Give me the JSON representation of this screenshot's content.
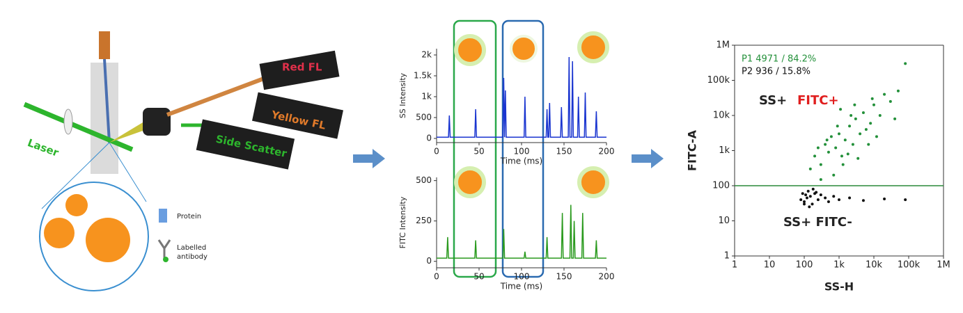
{
  "diagram": {
    "labels": {
      "laser": "Laser",
      "red": "Red FL",
      "yellow": "Yellow FL",
      "side": "Side Scatter",
      "protein": "Protein",
      "antibody": [
        "Labelled",
        "antibody"
      ]
    }
  },
  "chart_data": [
    {
      "type": "line",
      "ylabel": "SS Intensity",
      "xlabel": "Time (ms)",
      "xlim": [
        0,
        200
      ],
      "xticks": [
        0,
        50,
        100,
        150,
        200
      ],
      "ylim": [
        -100,
        2150
      ],
      "yticks": [
        0,
        500,
        {
          "value": 1000,
          "label": "1k"
        },
        {
          "value": 1500,
          "label": "1.5k"
        },
        {
          "value": 2000,
          "label": "2k"
        }
      ],
      "series": [
        {
          "color": "#1a35d0",
          "x": [
            0,
            14,
            15,
            16,
            45,
            46,
            47,
            78,
            79,
            80,
            81,
            82,
            103,
            104,
            105,
            129,
            130,
            131,
            132,
            133,
            134,
            146,
            147,
            148,
            155,
            156,
            157,
            159,
            160,
            161,
            166,
            167,
            168,
            174,
            175,
            176,
            187,
            188,
            189,
            200
          ],
          "values": [
            30,
            30,
            550,
            30,
            30,
            700,
            30,
            30,
            1450,
            30,
            1150,
            30,
            30,
            1000,
            30,
            30,
            700,
            30,
            30,
            850,
            30,
            30,
            750,
            30,
            30,
            1950,
            30,
            30,
            1850,
            30,
            30,
            1000,
            30,
            30,
            1100,
            30,
            30,
            650,
            30,
            30
          ]
        }
      ]
    },
    {
      "type": "line",
      "ylabel": "FITC Intensity",
      "xlabel": "Time (ms)",
      "xlim": [
        0,
        200
      ],
      "xticks": [
        0,
        50,
        100,
        150,
        200
      ],
      "ylim": [
        -40,
        520
      ],
      "yticks": [
        0,
        250,
        500
      ],
      "series": [
        {
          "color": "#2a9a1e",
          "x": [
            0,
            12,
            13,
            14,
            45,
            46,
            47,
            78,
            79,
            80,
            103,
            104,
            105,
            129,
            130,
            131,
            147,
            148,
            149,
            157,
            158,
            159,
            161,
            162,
            163,
            171,
            172,
            173,
            187,
            188,
            189,
            200
          ],
          "values": [
            20,
            20,
            150,
            20,
            20,
            130,
            20,
            20,
            200,
            20,
            20,
            60,
            20,
            20,
            150,
            20,
            20,
            300,
            20,
            20,
            350,
            20,
            20,
            250,
            20,
            20,
            300,
            20,
            20,
            130,
            20,
            20
          ]
        }
      ]
    },
    {
      "type": "scatter",
      "log": true,
      "xlabel": "SS-H",
      "ylabel": "FITC-A",
      "xlim": [
        1,
        1000000
      ],
      "ylim": [
        1,
        1000000
      ],
      "xticks": [
        1,
        10,
        100,
        {
          "value": 1000,
          "label": "1k"
        },
        {
          "value": 10000,
          "label": "10k"
        },
        {
          "value": 100000,
          "label": "100k"
        },
        {
          "value": 1000000,
          "label": "1M"
        }
      ],
      "yticks": [
        1,
        10,
        100,
        {
          "value": 1000,
          "label": "1k"
        },
        {
          "value": 10000,
          "label": "10k"
        },
        {
          "value": 100000,
          "label": "100k"
        },
        {
          "value": 1000000,
          "label": "1M"
        }
      ],
      "gate_y": 100,
      "gate_color": "#2a8a3a",
      "stats": [
        "P1  4971 / 84.2%",
        "P2  936 / 15.8%"
      ],
      "annotations": {
        "pos_ss": "SS+",
        "pos_fitc": "FITC+",
        "neg": "SS+ FITC-"
      },
      "series": [
        {
          "name": "P1",
          "color": "#23903a",
          "x": [
            150,
            200,
            300,
            400,
            500,
            600,
            800,
            1000,
            1200,
            1500,
            2000,
            2500,
            3000,
            4000,
            5000,
            6000,
            8000,
            10000,
            15000,
            20000,
            30000,
            50000,
            80000,
            300,
            700,
            900,
            1300,
            1800,
            2200,
            3500,
            7000,
            12000,
            250,
            450,
            1100,
            2800,
            9000,
            40000
          ],
          "values": [
            300,
            700,
            400,
            1500,
            900,
            2500,
            1200,
            3000,
            700,
            2000,
            5000,
            1500,
            8000,
            3000,
            12000,
            4000,
            6000,
            20000,
            10000,
            40000,
            25000,
            50000,
            300000,
            150,
            200,
            5000,
            400,
            800,
            10000,
            600,
            1500,
            2500,
            1200,
            2000,
            15000,
            20000,
            30000,
            8000
          ]
        },
        {
          "name": "P2",
          "color": "#111111",
          "x": [
            80,
            90,
            100,
            110,
            120,
            130,
            150,
            170,
            200,
            250,
            300,
            400,
            500,
            700,
            1000,
            2000,
            5000,
            20000,
            80000,
            100,
            140,
            180,
            220
          ],
          "values": [
            40,
            60,
            35,
            55,
            45,
            70,
            50,
            30,
            60,
            40,
            55,
            45,
            35,
            50,
            40,
            45,
            38,
            42,
            40,
            30,
            25,
            80,
            65
          ]
        }
      ]
    }
  ]
}
